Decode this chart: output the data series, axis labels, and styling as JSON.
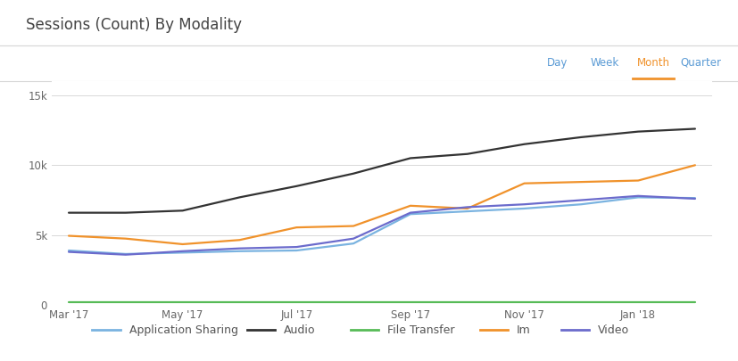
{
  "title": "Sessions (Count) By Modality",
  "background_color": "#ffffff",
  "plot_bg_color": "#ffffff",
  "tab_bar_color": "#f2f2f2",
  "x_labels_sparse": [
    "Mar '17",
    "",
    "May '17",
    "",
    "Jul '17",
    "",
    "Sep '17",
    "",
    "Nov '17",
    "",
    "Jan '18",
    ""
  ],
  "x_indices": [
    0,
    1,
    2,
    3,
    4,
    5,
    6,
    7,
    8,
    9,
    10,
    11
  ],
  "series": {
    "Application Sharing": {
      "color": "#7ab3e0",
      "values": [
        3900,
        3650,
        3750,
        3850,
        3900,
        4400,
        6500,
        6700,
        6900,
        7200,
        7700,
        7650
      ]
    },
    "Audio": {
      "color": "#333333",
      "values": [
        6600,
        6600,
        6750,
        7700,
        8500,
        9400,
        10500,
        10800,
        11500,
        12000,
        12400,
        12600
      ]
    },
    "File Transfer": {
      "color": "#57bb57",
      "values": [
        220,
        220,
        220,
        220,
        220,
        220,
        220,
        220,
        220,
        220,
        220,
        220
      ]
    },
    "Im": {
      "color": "#f0922b",
      "values": [
        4950,
        4750,
        4350,
        4650,
        5550,
        5650,
        7100,
        6900,
        8700,
        8800,
        8900,
        10000
      ]
    },
    "Video": {
      "color": "#6b6bcc",
      "values": [
        3800,
        3600,
        3850,
        4050,
        4150,
        4750,
        6600,
        7000,
        7200,
        7500,
        7800,
        7600
      ]
    }
  },
  "ylim": [
    0,
    16000
  ],
  "yticks": [
    0,
    5000,
    10000,
    15000
  ],
  "ytick_labels": [
    "0",
    "5k",
    "10k",
    "15k"
  ],
  "grid_color": "#d8d8d8",
  "legend_items": [
    "Application Sharing",
    "Audio",
    "File Transfer",
    "Im",
    "Video"
  ],
  "tab_labels": [
    "Day",
    "Week",
    "Month",
    "Quarter"
  ],
  "active_tab": "Month",
  "title_fontsize": 12,
  "axis_fontsize": 8.5,
  "legend_fontsize": 9,
  "tab_fontsize": 8.5
}
